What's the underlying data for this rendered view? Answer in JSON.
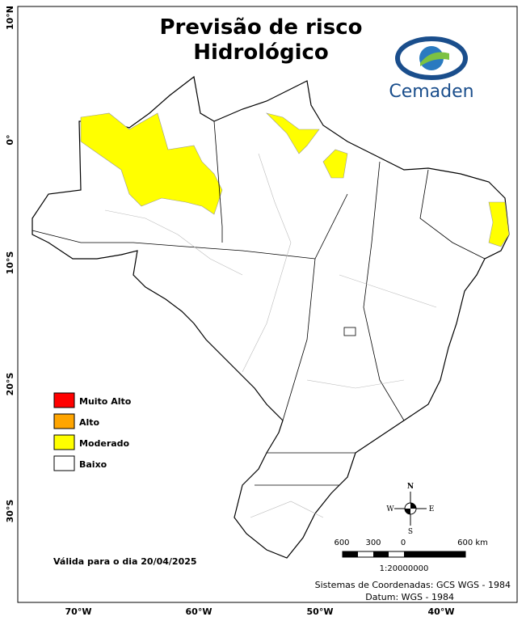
{
  "title": {
    "line1": "Previsão de risco",
    "line2": "Hidrológico"
  },
  "logo": {
    "text": "Cemaden"
  },
  "legend": [
    {
      "label": "Muito Alto",
      "color": "#ff0000"
    },
    {
      "label": "Alto",
      "color": "#ffa500"
    },
    {
      "label": "Moderado",
      "color": "#ffff00"
    },
    {
      "label": "Baixo",
      "color": "#ffffff"
    }
  ],
  "latitude_labels": [
    "10°N",
    "0°",
    "10°S",
    "20°S",
    "30°S"
  ],
  "longitude_labels": [
    "70°W",
    "60°W",
    "50°W",
    "40°W"
  ],
  "north_arrow": {
    "n": "N",
    "s": "S",
    "w": "W",
    "e": "E"
  },
  "scale_bar": {
    "labels": [
      "600",
      "300",
      "0",
      "600 km"
    ],
    "ratio": "1:20000000"
  },
  "valid_date": "Válida para o dia 20/04/2025",
  "footer": {
    "line1": "Sistemas de Coordenadas: GCS WGS - 1984",
    "line2": "Datum: WGS - 1984"
  }
}
